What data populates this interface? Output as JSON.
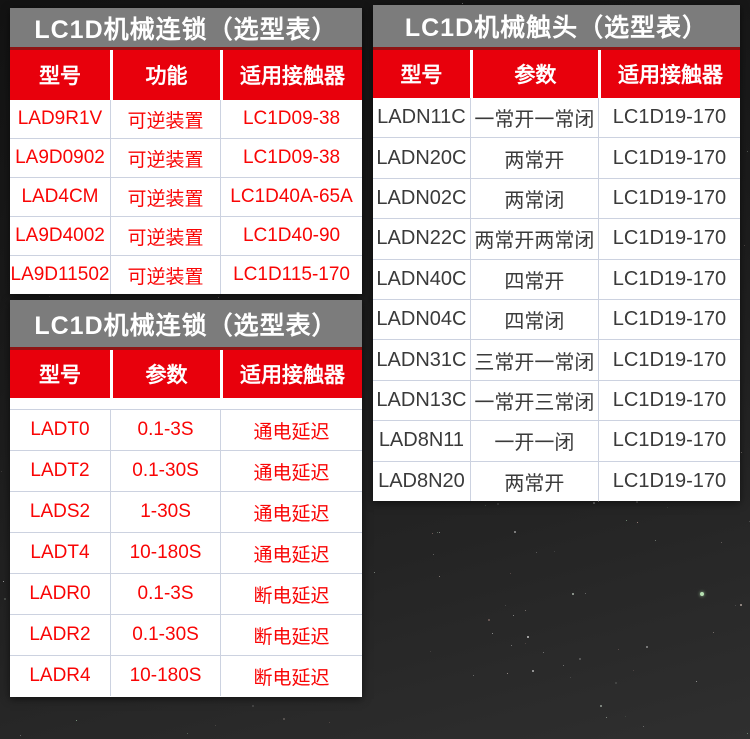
{
  "colors": {
    "background_dark": "#1b1b1b",
    "title_bar_gray": "#7c7c7c",
    "header_red": "#e8000c",
    "header_top_line_dark_red": "#8f1414",
    "body_text_red": "#f90505",
    "body_text_dark": "#3a3a3a",
    "row_border": "#ccd2e0",
    "table_background": "#ffffff"
  },
  "tables": [
    {
      "title": "LC1D机械连锁（选型表）",
      "columns": [
        "型号",
        "功能",
        "适用接触器"
      ],
      "rows": [
        [
          "LAD9R1V",
          "可逆装置",
          "LC1D09-38"
        ],
        [
          "LA9D0902",
          "可逆装置",
          "LC1D09-38"
        ],
        [
          "LAD4CM",
          "可逆装置",
          "LC1D40A-65A"
        ],
        [
          "LA9D4002",
          "可逆装置",
          "LC1D40-90"
        ],
        [
          "LA9D11502",
          "可逆装置",
          "LC1D115-170"
        ]
      ]
    },
    {
      "title": "LC1D机械连锁（选型表）",
      "columns": [
        "型号",
        "参数",
        "适用接触器"
      ],
      "rows": [
        [
          "LADT0",
          "0.1-3S",
          "通电延迟"
        ],
        [
          "LADT2",
          "0.1-30S",
          "通电延迟"
        ],
        [
          "LADS2",
          "1-30S",
          "通电延迟"
        ],
        [
          "LADT4",
          "10-180S",
          "通电延迟"
        ],
        [
          "LADR0",
          "0.1-3S",
          "断电延迟"
        ],
        [
          "LADR2",
          "0.1-30S",
          "断电延迟"
        ],
        [
          "LADR4",
          "10-180S",
          "断电延迟"
        ]
      ]
    },
    {
      "title": "LC1D机械触头（选型表）",
      "columns": [
        "型号",
        "参数",
        "适用接触器"
      ],
      "rows": [
        [
          "LADN11C",
          "一常开一常闭",
          "LC1D19-170"
        ],
        [
          "LADN20C",
          "两常开",
          "LC1D19-170"
        ],
        [
          "LADN02C",
          "两常闭",
          "LC1D19-170"
        ],
        [
          "LADN22C",
          "两常开两常闭",
          "LC1D19-170"
        ],
        [
          "LADN40C",
          "四常开",
          "LC1D19-170"
        ],
        [
          "LADN04C",
          "四常闭",
          "LC1D19-170"
        ],
        [
          "LADN31C",
          "三常开一常闭",
          "LC1D19-170"
        ],
        [
          "LADN13C",
          "一常开三常闭",
          "LC1D19-170"
        ],
        [
          "LAD8N11",
          "一开一闭",
          "LC1D19-170"
        ],
        [
          "LAD8N20",
          "两常开",
          "LC1D19-170"
        ]
      ]
    }
  ]
}
